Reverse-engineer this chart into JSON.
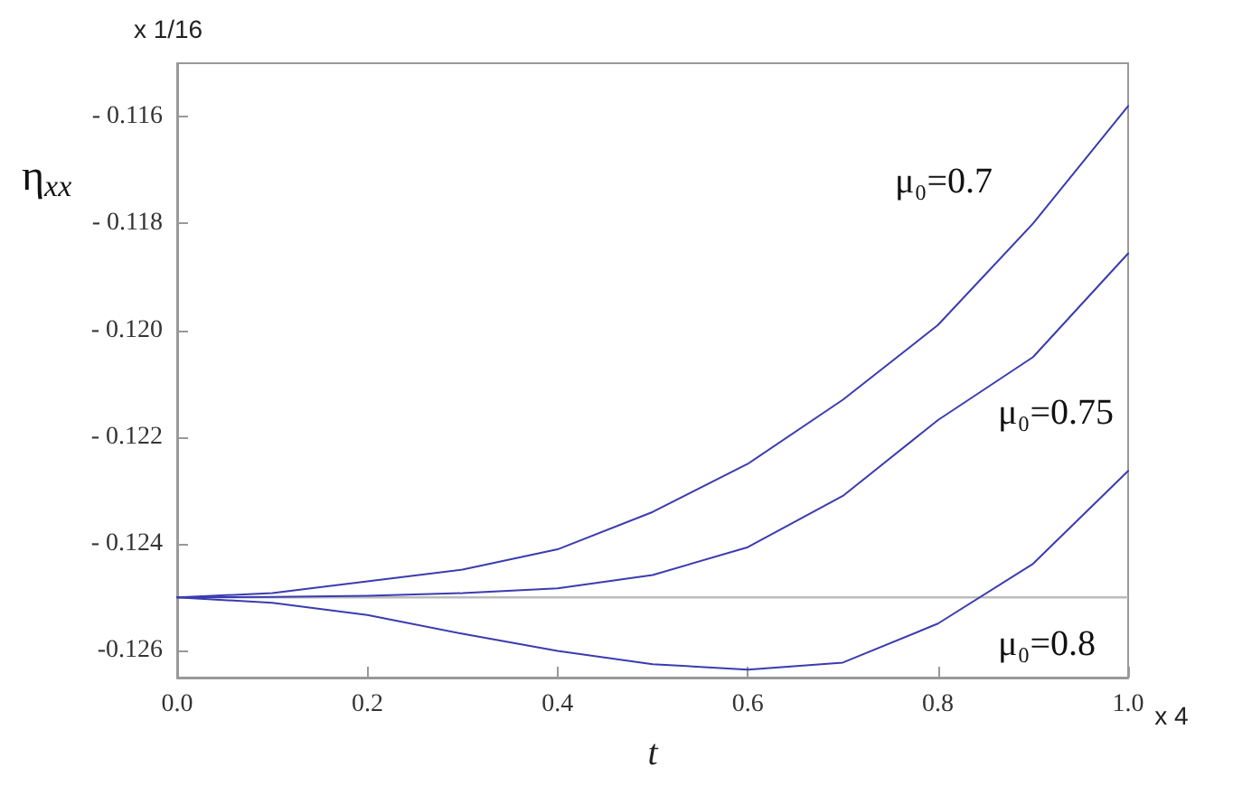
{
  "chart_data": {
    "type": "line",
    "xlabel": "t",
    "ylabel": "η$_{xx}$",
    "annotations": [
      "x 1/16",
      "x 4"
    ],
    "x": [
      0,
      0.1,
      0.2,
      0.3,
      0.4,
      0.5,
      0.6,
      0.7,
      0.8,
      0.9,
      1.0
    ],
    "series": [
      {
        "name": "μ₀=0.7",
        "color": "#3b3bb0",
        "values": [
          -0.125,
          -0.12492,
          -0.1247,
          -0.12448,
          -0.1241,
          -0.1234,
          -0.1225,
          -0.1213,
          -0.1199,
          -0.118,
          -0.1158
        ]
      },
      {
        "name": "μ₀=0.75",
        "color": "#3b3bb0",
        "values": [
          -0.125,
          -0.12499,
          -0.12497,
          -0.12492,
          -0.12483,
          -0.12458,
          -0.12406,
          -0.1231,
          -0.12168,
          -0.1205,
          -0.11856
        ]
      },
      {
        "name": "μ₀=0.8",
        "color": "#3b3bb0",
        "values": [
          -0.125,
          -0.1251,
          -0.12533,
          -0.12568,
          -0.126,
          -0.12625,
          -0.12635,
          -0.12622,
          -0.12549,
          -0.12437,
          -0.12263
        ]
      }
    ],
    "xlim": [
      0,
      1
    ],
    "xticks": [
      {
        "value": 0,
        "label": "0.0"
      },
      0.2,
      0.4,
      0.6,
      0.8,
      {
        "value": 1,
        "label": "1.0"
      }
    ],
    "ylim": [
      -0.1265,
      -0.115
    ],
    "yticks": [
      {
        "value": -0.126,
        "label": "-0.126"
      },
      {
        "value": -0.124,
        "label": "- 0.124"
      },
      {
        "value": -0.122,
        "label": "- 0.122"
      },
      {
        "value": -0.12,
        "label": "- 0.120"
      },
      {
        "value": -0.118,
        "label": "- 0.118"
      },
      {
        "value": -0.116,
        "label": "- 0.116"
      }
    ],
    "ref_lines": [
      {
        "axis": "y",
        "value": -0.125,
        "color": "#bbbbbb"
      }
    ],
    "grid": false,
    "legend": false,
    "marker": "none",
    "line_style": "solid"
  }
}
